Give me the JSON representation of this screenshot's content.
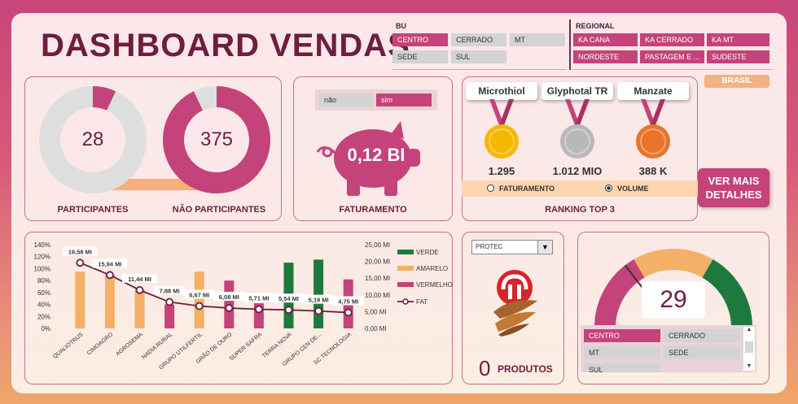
{
  "title": "DASHBOARD VENDAS",
  "bu": {
    "title": "BU",
    "items": [
      {
        "label": "CENTRO",
        "selected": true
      },
      {
        "label": "CERRADO",
        "selected": false
      },
      {
        "label": "MT",
        "selected": false
      },
      {
        "label": "SEDE",
        "selected": false
      },
      {
        "label": "SUL",
        "selected": false
      }
    ]
  },
  "regional": {
    "title": "REGIONAL",
    "items": [
      {
        "label": "KA CANA",
        "selected": true
      },
      {
        "label": "KA CERRADO",
        "selected": true
      },
      {
        "label": "KA MT",
        "selected": true
      },
      {
        "label": "NORDESTE",
        "selected": true
      },
      {
        "label": "PASTAGEM E ...",
        "selected": true
      },
      {
        "label": "SUDESTE",
        "selected": true
      }
    ]
  },
  "brasil_button": "BRASIL",
  "participants": {
    "participantes_value": "28",
    "participantes_label": "PARTICIPANTES",
    "nao_value": "375",
    "nao_label": "NÃO PARTICIPANTES",
    "participantes_fraction": 0.07,
    "nao_fraction": 0.93
  },
  "faturamento": {
    "filter": [
      {
        "label": "não",
        "selected": false
      },
      {
        "label": "sim",
        "selected": true
      }
    ],
    "value": "0,12 BI",
    "label": "FATURAMENTO"
  },
  "ranking": {
    "label": "RANKING TOP 3",
    "medals": [
      {
        "name": "Microthiol",
        "value": "1.295",
        "color": "#f5b800"
      },
      {
        "name": "Glyphotal TR",
        "value": "1.012 MIO",
        "color": "#b8b8b8"
      },
      {
        "name": "Manzate",
        "value": "388 K",
        "color": "#e8742a"
      }
    ],
    "options": [
      {
        "label": "FATURAMENTO",
        "selected": false
      },
      {
        "label": "VOLUME",
        "selected": true
      }
    ]
  },
  "ver_mais": {
    "line1": "VER MAIS",
    "line2": "DETALHES"
  },
  "chart_data": {
    "type": "bar",
    "categories": [
      "QUALIOTRUS",
      "CIMOAGRO",
      "AGROSEMA",
      "NADIA RURAL",
      "GRUPO UTILFERTIL",
      "GRÃO DE OURO",
      "SUPER SAFRA",
      "TERRA NOVA",
      "GRUPO CEN DE...",
      "SC TECNOLOGIA"
    ],
    "series": [
      {
        "name": "VERDE",
        "color": "#1e7a3c",
        "values": [
          0,
          0,
          0,
          0,
          0,
          0,
          0,
          110,
          115,
          0
        ]
      },
      {
        "name": "AMARELO",
        "color": "#f4b066",
        "values": [
          95,
          90,
          65,
          0,
          95,
          0,
          0,
          0,
          0,
          0
        ]
      },
      {
        "name": "VERMELHO",
        "color": "#c4437a",
        "values": [
          0,
          0,
          0,
          40,
          0,
          80,
          42,
          0,
          0,
          82
        ]
      },
      {
        "name": "FAT",
        "color": "#6d1e3f",
        "axis": "right",
        "values": [
          19.58,
          15.94,
          11.44,
          7.88,
          6.67,
          6.08,
          5.71,
          5.54,
          5.19,
          4.75
        ],
        "labels": [
          "19,58 MI",
          "15,94 MI",
          "11,44 MI",
          "7,88 MI",
          "6,67 MI",
          "6,08 MI",
          "5,71 MI",
          "5,54 MI",
          "5,19 MI",
          "4,75 MI"
        ]
      }
    ],
    "y_left_ticks": [
      "0%",
      "20%",
      "40%",
      "60%",
      "80%",
      "100%",
      "120%",
      "140%"
    ],
    "y_left_range": [
      0,
      140
    ],
    "y_right_ticks": [
      "0,00 MI",
      "5,00 MI",
      "10,00 MI",
      "15,00 MI",
      "20,00 MI",
      "25,00 MI"
    ],
    "y_right_range": [
      0,
      25
    ],
    "legend_position": "right"
  },
  "produtos": {
    "dropdown_value": "PROTEC",
    "count": "0",
    "label": "PRODUTOS"
  },
  "gauge": {
    "value": "29",
    "fraction": 0.29,
    "bands": [
      {
        "color": "#c4437a"
      },
      {
        "color": "#f4b066"
      },
      {
        "color": "#1e7a3c"
      }
    ],
    "slicer": [
      {
        "label": "CENTRO",
        "selected": true
      },
      {
        "label": "CERRADO",
        "selected": false
      },
      {
        "label": "MT",
        "selected": false
      },
      {
        "label": "SEDE",
        "selected": false
      },
      {
        "label": "SUL",
        "selected": false
      }
    ]
  }
}
